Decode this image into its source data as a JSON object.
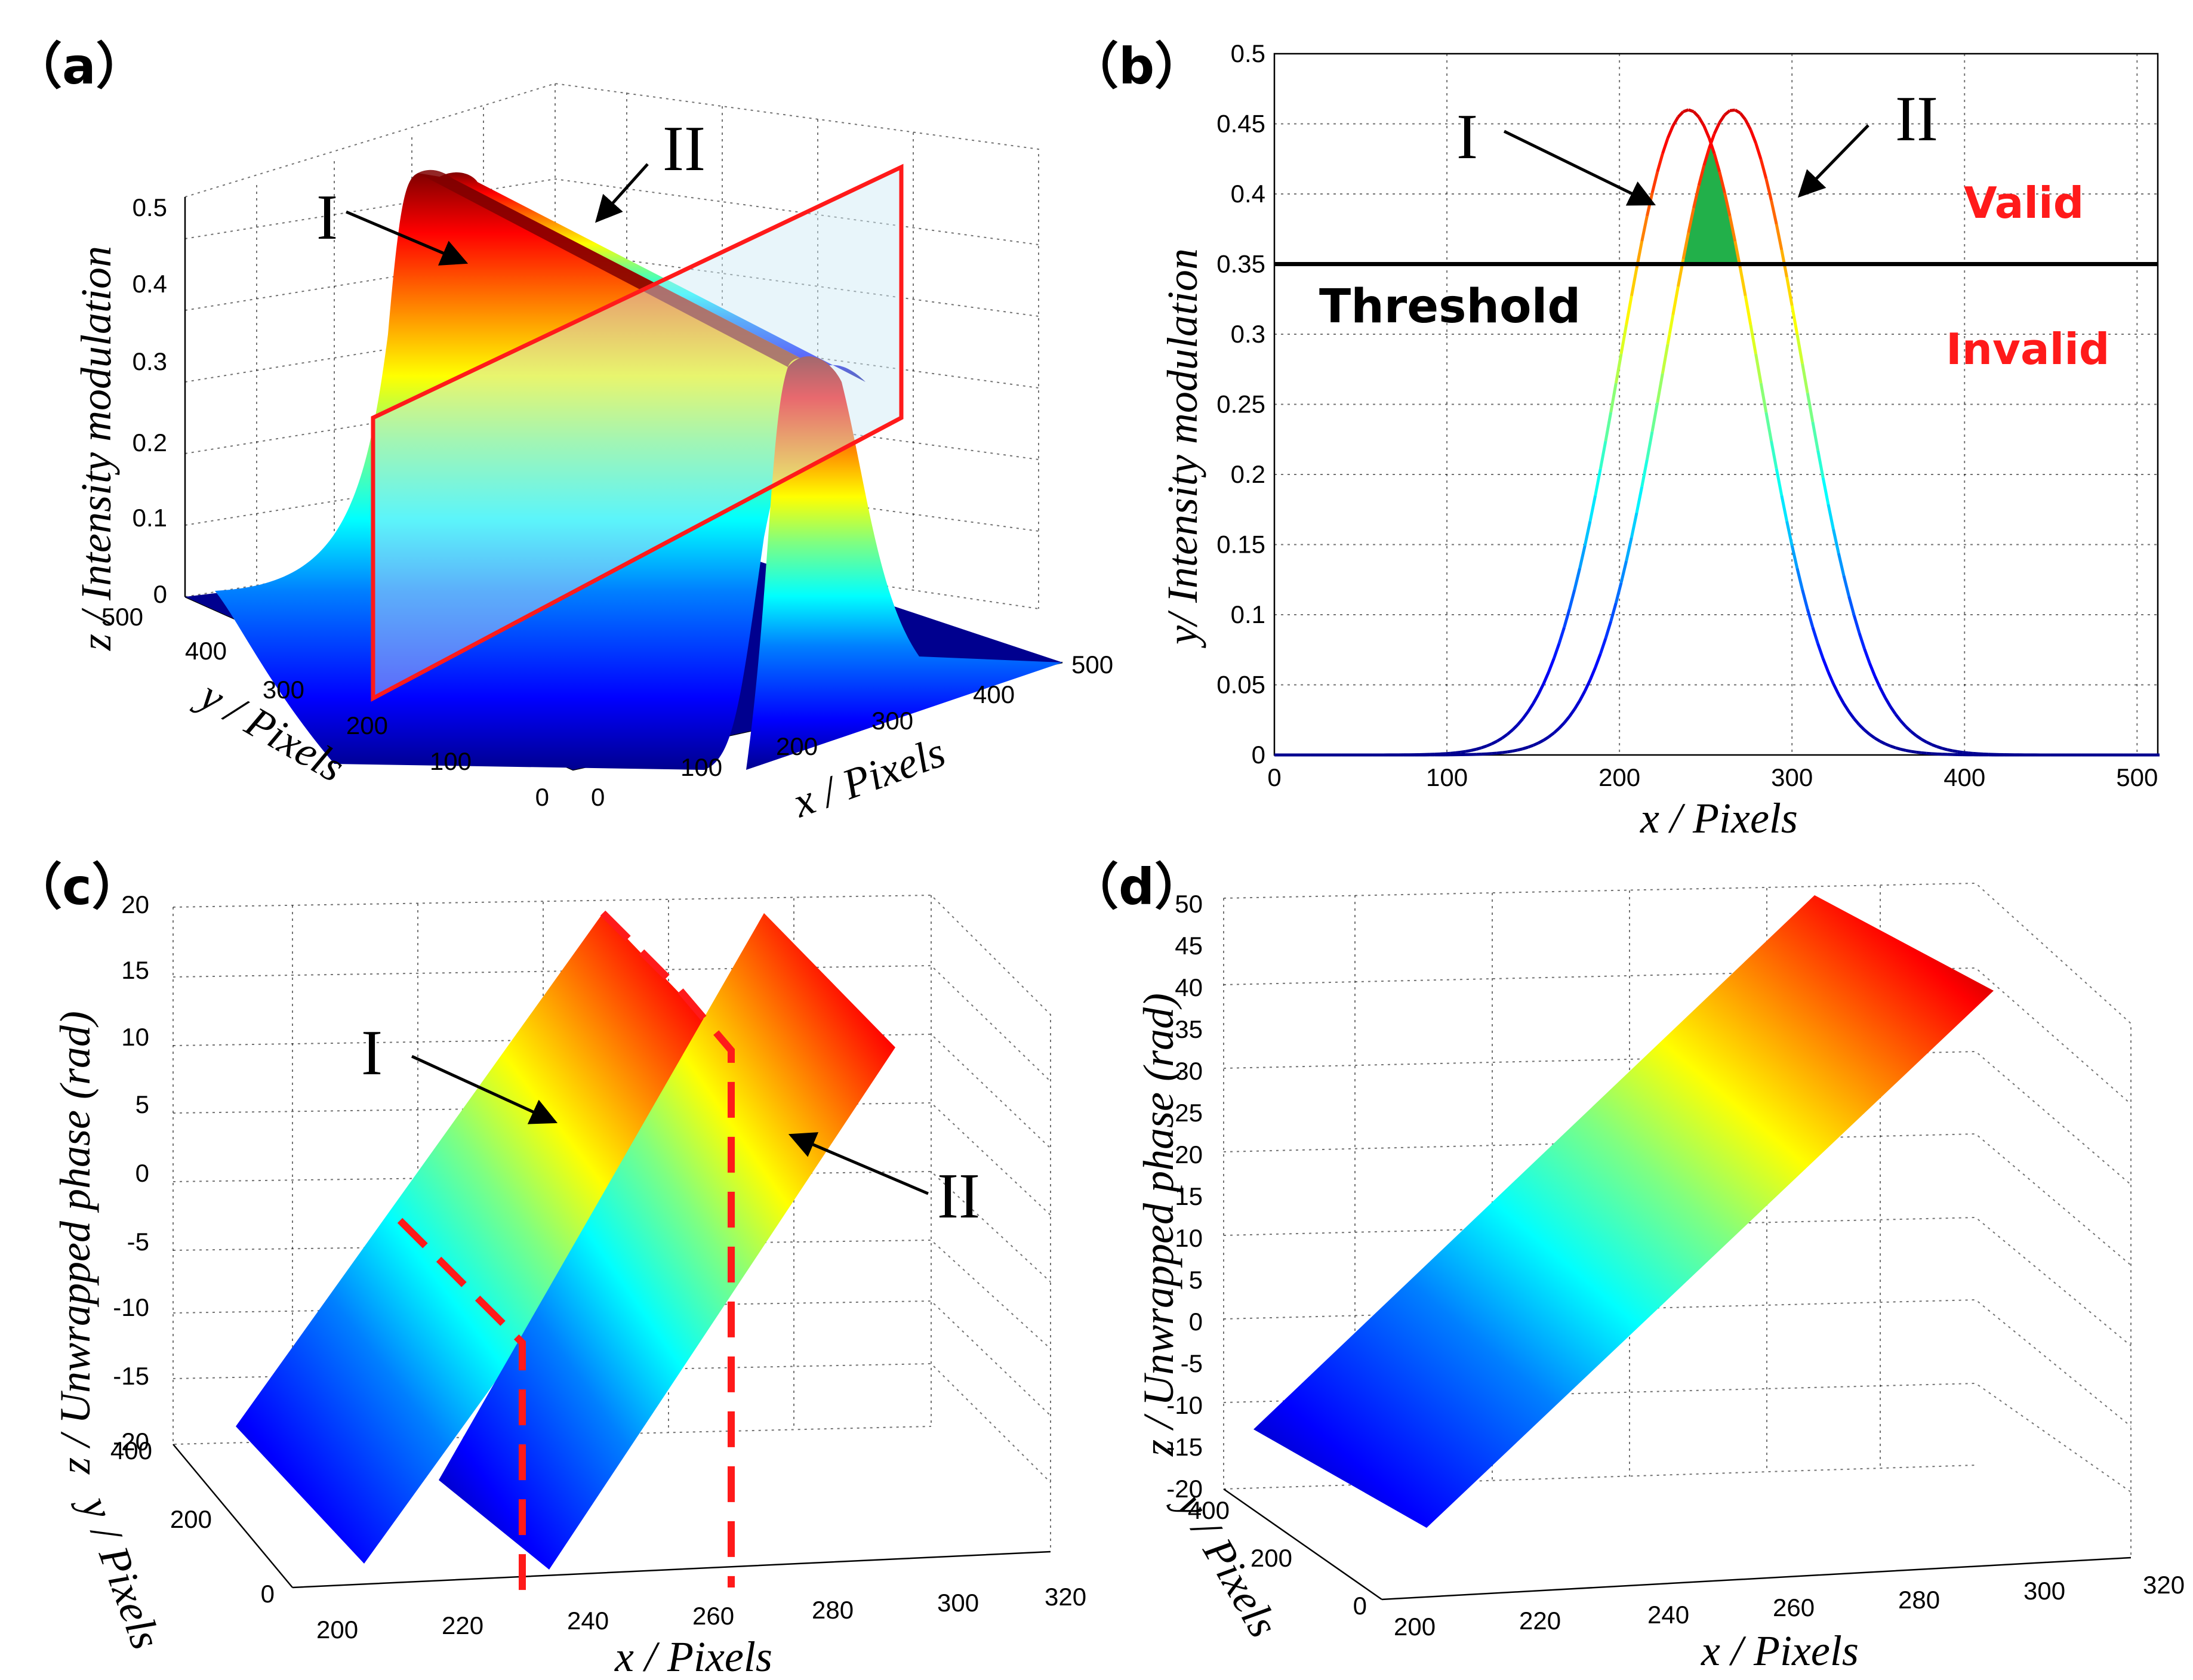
{
  "colors": {
    "jet": [
      "#00008f",
      "#0000ff",
      "#0080ff",
      "#00ffff",
      "#80ff80",
      "#ffff00",
      "#ff8000",
      "#ff0000",
      "#800000"
    ],
    "threshold": "#000000",
    "annotation_red": "#ff1a1a",
    "valid_fill": "#22b04a",
    "plane_fill": "#cde8f5"
  },
  "chart_data": [
    {
      "panel": "a",
      "label": "（a）",
      "type": "surface",
      "xlabel": "x / Pixels",
      "ylabel": "y / Pixels",
      "zlabel": "z / Intensity modulation",
      "x_ticks": [
        "0",
        "100",
        "200",
        "300",
        "400",
        "500"
      ],
      "y_ticks": [
        "0",
        "100",
        "200",
        "300",
        "400",
        "500"
      ],
      "z_ticks": [
        "0",
        "0.1",
        "0.2",
        "0.3",
        "0.4",
        "0.5"
      ],
      "xlim": [
        0,
        500
      ],
      "ylim": [
        0,
        500
      ],
      "zlim": [
        0,
        0.5
      ],
      "series": [
        {
          "name": "I",
          "peak_x": 240,
          "peak": 0.46
        },
        {
          "name": "II",
          "peak_x": 265,
          "peak": 0.46
        }
      ],
      "annotations": [
        "I",
        "II"
      ]
    },
    {
      "panel": "b",
      "label": "（b）",
      "type": "line",
      "xlabel": "x / Pixels",
      "ylabel": "y/ Intensity modulation",
      "x_ticks": [
        "0",
        "100",
        "200",
        "300",
        "400",
        "500"
      ],
      "y_ticks": [
        "0",
        "0.05",
        "0.1",
        "0.15",
        "0.2",
        "0.25",
        "0.3",
        "0.35",
        "0.4",
        "0.45",
        "0.5"
      ],
      "xlim": [
        0,
        512
      ],
      "ylim": [
        0,
        0.5
      ],
      "series": [
        {
          "name": "I",
          "center": 240,
          "peak": 0.46,
          "sigma": 40
        },
        {
          "name": "II",
          "center": 266,
          "peak": 0.46,
          "sigma": 40
        }
      ],
      "threshold": 0.35,
      "threshold_label": "Threshold",
      "valid_label": "Valid",
      "invalid_label": "Invalid",
      "annotations": [
        "I",
        "II"
      ]
    },
    {
      "panel": "c",
      "label": "（c）",
      "type": "surface",
      "xlabel": "x / Pixels",
      "ylabel": "y / Pixels",
      "zlabel": "z / Unwrapped phase (rad)",
      "x_ticks": [
        "200",
        "220",
        "240",
        "260",
        "280",
        "300",
        "320"
      ],
      "y_ticks": [
        "0",
        "200",
        "400"
      ],
      "z_ticks": [
        "-20",
        "-15",
        "-10",
        "-5",
        "0",
        "5",
        "10",
        "15",
        "20"
      ],
      "xlim": [
        200,
        320
      ],
      "ylim": [
        0,
        500
      ],
      "zlim": [
        -20,
        20
      ],
      "annotations": [
        "I",
        "II"
      ]
    },
    {
      "panel": "d",
      "label": "（d）",
      "type": "surface",
      "xlabel": "x / Pixels",
      "ylabel": "y / Pixels",
      "zlabel": "z / Unwrapped phase (rad)",
      "x_ticks": [
        "200",
        "220",
        "240",
        "260",
        "280",
        "300",
        "320"
      ],
      "y_ticks": [
        "0",
        "200",
        "400"
      ],
      "z_ticks": [
        "-20",
        "-15",
        "-10",
        "-5",
        "0",
        "5",
        "10",
        "15",
        "20",
        "25",
        "30",
        "35",
        "40",
        "45",
        "50"
      ],
      "xlim": [
        200,
        320
      ],
      "ylim": [
        0,
        500
      ],
      "zlim": [
        -20,
        50
      ]
    }
  ]
}
